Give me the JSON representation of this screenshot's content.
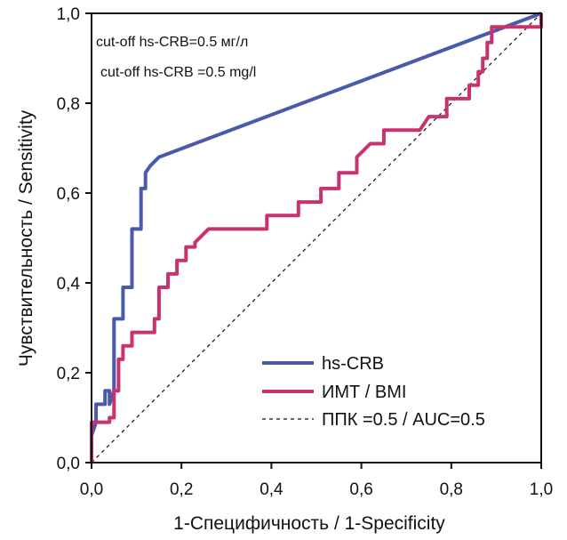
{
  "chart_data": {
    "type": "line",
    "xlabel": "1-Специфичность /  1-Specificity",
    "ylabel": "Чувствительность / Sensitivity",
    "xlim": [
      0,
      1
    ],
    "ylim": [
      0,
      1
    ],
    "x_ticks": [
      "0,0",
      "0,2",
      "0,4",
      "0,6",
      "0,8",
      "1,0"
    ],
    "y_ticks": [
      "0,0",
      "0,2",
      "0,4",
      "0,6",
      "0,8",
      "1,0"
    ],
    "annotations": [
      "cut-off hs-CRB=0.5 мг/л",
      "cut-off hs-CRB =0.5 mg/l"
    ],
    "legend_position": "bottom-right",
    "series": [
      {
        "name": "hs-CRB",
        "color": "#4a5aa8",
        "style": "solid",
        "points": [
          [
            0,
            0
          ],
          [
            0,
            0.06
          ],
          [
            0.01,
            0.09
          ],
          [
            0.01,
            0.13
          ],
          [
            0.03,
            0.13
          ],
          [
            0.03,
            0.16
          ],
          [
            0.04,
            0.16
          ],
          [
            0.04,
            0.13
          ],
          [
            0.05,
            0.16
          ],
          [
            0.05,
            0.19
          ],
          [
            0.05,
            0.32
          ],
          [
            0.07,
            0.32
          ],
          [
            0.07,
            0.39
          ],
          [
            0.09,
            0.39
          ],
          [
            0.09,
            0.52
          ],
          [
            0.11,
            0.52
          ],
          [
            0.11,
            0.61
          ],
          [
            0.12,
            0.61
          ],
          [
            0.12,
            0.645
          ],
          [
            0.13,
            0.66
          ],
          [
            0.15,
            0.68
          ],
          [
            1.0,
            1.0
          ]
        ]
      },
      {
        "name": "ИМТ / BMI",
        "color": "#c8336f",
        "style": "solid",
        "points": [
          [
            0,
            0
          ],
          [
            0,
            0.09
          ],
          [
            0.04,
            0.09
          ],
          [
            0.04,
            0.1
          ],
          [
            0.05,
            0.1
          ],
          [
            0.05,
            0.16
          ],
          [
            0.06,
            0.16
          ],
          [
            0.06,
            0.23
          ],
          [
            0.07,
            0.23
          ],
          [
            0.07,
            0.26
          ],
          [
            0.09,
            0.26
          ],
          [
            0.09,
            0.29
          ],
          [
            0.14,
            0.29
          ],
          [
            0.14,
            0.32
          ],
          [
            0.15,
            0.32
          ],
          [
            0.15,
            0.39
          ],
          [
            0.17,
            0.39
          ],
          [
            0.17,
            0.42
          ],
          [
            0.19,
            0.42
          ],
          [
            0.19,
            0.45
          ],
          [
            0.21,
            0.45
          ],
          [
            0.21,
            0.48
          ],
          [
            0.23,
            0.48
          ],
          [
            0.23,
            0.49
          ],
          [
            0.26,
            0.52
          ],
          [
            0.39,
            0.52
          ],
          [
            0.39,
            0.55
          ],
          [
            0.46,
            0.55
          ],
          [
            0.46,
            0.58
          ],
          [
            0.51,
            0.58
          ],
          [
            0.51,
            0.61
          ],
          [
            0.55,
            0.61
          ],
          [
            0.55,
            0.645
          ],
          [
            0.59,
            0.645
          ],
          [
            0.59,
            0.68
          ],
          [
            0.62,
            0.71
          ],
          [
            0.65,
            0.71
          ],
          [
            0.65,
            0.74
          ],
          [
            0.73,
            0.74
          ],
          [
            0.75,
            0.77
          ],
          [
            0.79,
            0.77
          ],
          [
            0.79,
            0.81
          ],
          [
            0.84,
            0.81
          ],
          [
            0.84,
            0.84
          ],
          [
            0.86,
            0.84
          ],
          [
            0.86,
            0.87
          ],
          [
            0.87,
            0.87
          ],
          [
            0.87,
            0.9
          ],
          [
            0.88,
            0.9
          ],
          [
            0.88,
            0.935
          ],
          [
            0.89,
            0.935
          ],
          [
            0.89,
            0.97
          ],
          [
            1.0,
            0.97
          ],
          [
            1.0,
            1.0
          ]
        ]
      },
      {
        "name": "ППК =0.5 / AUC=0.5",
        "color": "#111111",
        "style": "dashed",
        "points": [
          [
            0,
            0
          ],
          [
            1,
            1
          ]
        ]
      }
    ]
  }
}
